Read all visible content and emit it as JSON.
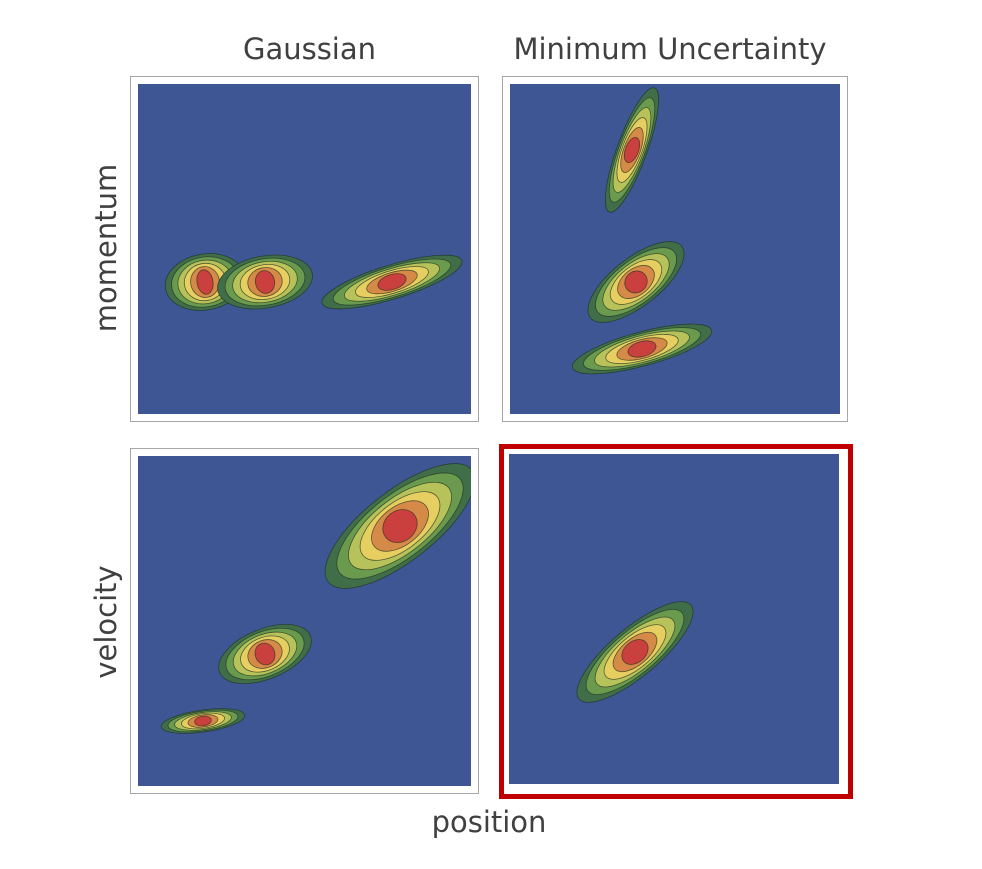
{
  "columns": [
    "Gaussian",
    "Minimum Uncertainty"
  ],
  "rows": [
    "momentum",
    "velocity"
  ],
  "xlabel": "position",
  "colors": {
    "background": "#3e5693",
    "levels": [
      "#3f6e48",
      "#6a9a4e",
      "#b7c35a",
      "#e6cf60",
      "#d58a47",
      "#c9403e"
    ],
    "outline": "#1f2f1f",
    "highlight_border": "#c00000",
    "panel_border": "#a6a6a6"
  },
  "panels": [
    {
      "id": "gaussian-momentum",
      "column": "Gaussian",
      "row": "momentum",
      "highlighted": false,
      "blobs": [
        {
          "cx": 67,
          "cy": 198,
          "rx": 40,
          "ry": 28,
          "angle": -10
        },
        {
          "cx": 127,
          "cy": 198,
          "rx": 48,
          "ry": 26,
          "angle": -10
        },
        {
          "cx": 254,
          "cy": 198,
          "rx": 73,
          "ry": 17,
          "angle": -17
        }
      ]
    },
    {
      "id": "uncertainty-momentum",
      "column": "Minimum Uncertainty",
      "row": "momentum",
      "highlighted": false,
      "blobs": [
        {
          "cx": 122,
          "cy": 66,
          "rx": 66,
          "ry": 15,
          "angle": -70
        },
        {
          "cx": 126,
          "cy": 198,
          "rx": 58,
          "ry": 24,
          "angle": -38
        },
        {
          "cx": 132,
          "cy": 265,
          "rx": 72,
          "ry": 17,
          "angle": -15
        }
      ]
    },
    {
      "id": "gaussian-velocity",
      "column": "Gaussian",
      "row": "velocity",
      "highlighted": false,
      "blobs": [
        {
          "cx": 262,
          "cy": 70,
          "rx": 91,
          "ry": 35,
          "angle": -38
        },
        {
          "cx": 127,
          "cy": 198,
          "rx": 49,
          "ry": 25,
          "angle": -22
        },
        {
          "cx": 65,
          "cy": 265,
          "rx": 42,
          "ry": 11,
          "angle": -8
        }
      ]
    },
    {
      "id": "uncertainty-velocity",
      "column": "Minimum Uncertainty",
      "row": "velocity",
      "highlighted": true,
      "blobs": [
        {
          "cx": 126,
          "cy": 198,
          "rx": 73,
          "ry": 24,
          "angle": -40
        }
      ]
    }
  ]
}
